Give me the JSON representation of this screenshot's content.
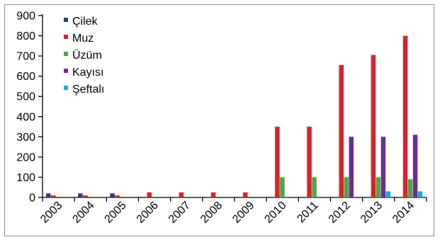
{
  "chart_data": {
    "type": "bar",
    "categories": [
      "2003",
      "2004",
      "2005",
      "2006",
      "2007",
      "2008",
      "2009",
      "2010",
      "2011",
      "2012",
      "2013",
      "2014"
    ],
    "series": [
      {
        "name": "Çilek",
        "color": "#243f8f",
        "values": [
          20,
          20,
          20,
          0,
          0,
          0,
          0,
          0,
          0,
          0,
          0,
          0
        ]
      },
      {
        "name": "Muz",
        "color": "#d9232b",
        "values": [
          10,
          10,
          10,
          25,
          25,
          25,
          25,
          350,
          350,
          655,
          705,
          800
        ]
      },
      {
        "name": "Üzüm",
        "color": "#4aa842",
        "values": [
          0,
          0,
          0,
          0,
          0,
          0,
          0,
          100,
          100,
          100,
          100,
          90
        ]
      },
      {
        "name": "Kayısı",
        "color": "#6b2d8f",
        "values": [
          0,
          0,
          0,
          0,
          0,
          0,
          0,
          0,
          0,
          300,
          300,
          310
        ]
      },
      {
        "name": "Şeftalı",
        "color": "#1ba8e0",
        "values": [
          0,
          0,
          0,
          0,
          0,
          0,
          0,
          0,
          0,
          0,
          30,
          30
        ]
      }
    ],
    "yticks": [
      0,
      100,
      200,
      300,
      400,
      500,
      600,
      700,
      800,
      900
    ],
    "ylim": [
      0,
      900
    ],
    "legend_position": "top-left",
    "grid": false,
    "title": "",
    "xlabel": "",
    "ylabel": ""
  }
}
